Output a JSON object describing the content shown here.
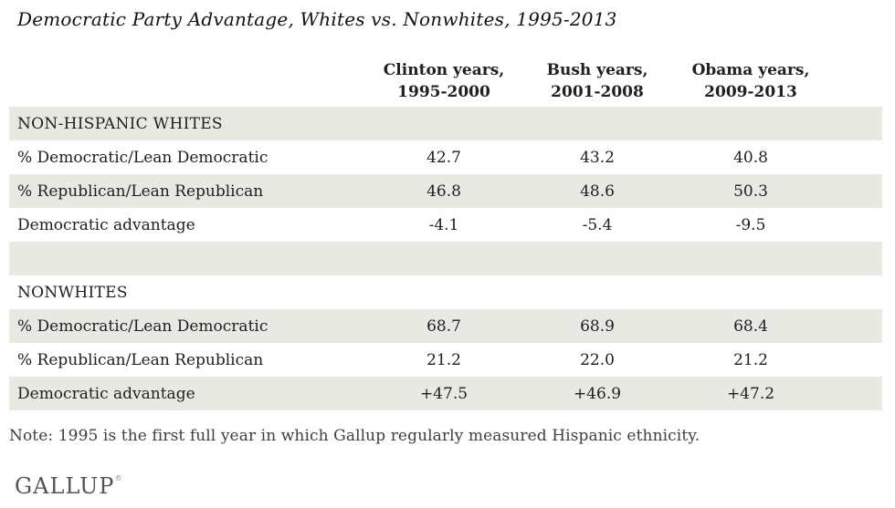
{
  "title": "Democratic Party Advantage, Whites vs. Nonwhites, 1995-2013",
  "chart_data": {
    "type": "table",
    "title": "Democratic Party Advantage, Whites vs. Nonwhites, 1995-2013",
    "columns": [
      {
        "label": "Clinton years,",
        "sublabel": "1995-2000"
      },
      {
        "label": "Bush years,",
        "sublabel": "2001-2008"
      },
      {
        "label": "Obama years,",
        "sublabel": "2009-2013"
      }
    ],
    "sections": [
      {
        "header": "NON-HISPANIC WHITES",
        "rows": [
          {
            "label": "% Democratic/Lean Democratic",
            "values": [
              "42.7",
              "43.2",
              "40.8"
            ]
          },
          {
            "label": "% Republican/Lean Republican",
            "values": [
              "46.8",
              "48.6",
              "50.3"
            ]
          },
          {
            "label": "Democratic advantage",
            "values": [
              "-4.1",
              "-5.4",
              "-9.5"
            ]
          }
        ]
      },
      {
        "header": "NONWHITES",
        "rows": [
          {
            "label": "% Democratic/Lean Democratic",
            "values": [
              "68.7",
              "68.9",
              "68.4"
            ]
          },
          {
            "label": "% Republican/Lean Republican",
            "values": [
              "21.2",
              "22.0",
              "21.2"
            ]
          },
          {
            "label": "Democratic advantage",
            "values": [
              "+47.5",
              "+46.9",
              "+47.2"
            ]
          }
        ]
      }
    ],
    "layout": {
      "row_striping": "alternating starting shaded",
      "value_alignment": "center"
    }
  },
  "note": "Note: 1995 is the first full year in which Gallup regularly measured Hispanic ethnicity.",
  "logo": {
    "text": "GALLUP",
    "trademark": "®"
  },
  "colors": {
    "row_stripe": "#e9e9e4",
    "table_text": "#21201e",
    "note_text": "#3e3e3e",
    "logo_text": "#53535c"
  }
}
